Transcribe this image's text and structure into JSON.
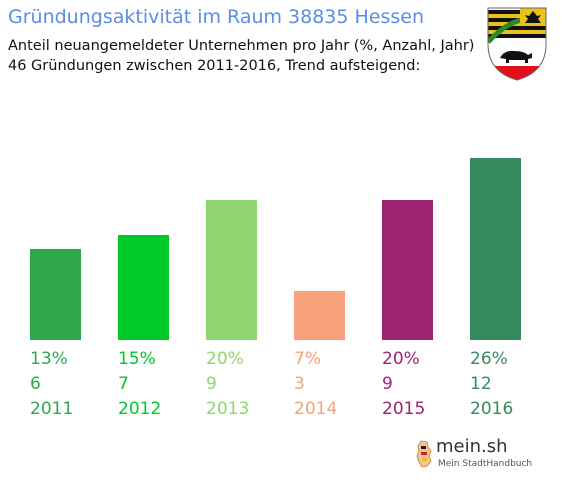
{
  "header": {
    "title": "Gründungsaktivität im Raum 38835 Hessen",
    "subtitle_line1": "Anteil neuangemeldeter Unternehmen pro Jahr (%, Anzahl, Jahr)",
    "subtitle_line2": "46 Gründungen zwischen 2011-2016, Trend aufsteigend:"
  },
  "crest": {
    "icon": "coat-of-arms-icon"
  },
  "logo": {
    "name": "mein.sh",
    "tagline": "Mein StadtHandbuch",
    "icon": "germany-map-icon"
  },
  "chart_data": {
    "type": "bar",
    "title": "Gründungsaktivität im Raum 38835 Hessen",
    "categories": [
      "2011",
      "2012",
      "2013",
      "2014",
      "2015",
      "2016"
    ],
    "values": [
      13,
      15,
      20,
      7,
      20,
      26
    ],
    "counts": [
      6,
      7,
      9,
      3,
      9,
      12
    ],
    "percent_labels": [
      "13%",
      "15%",
      "20%",
      "7%",
      "20%",
      "26%"
    ],
    "count_labels": [
      "6",
      "7",
      "9",
      "3",
      "9",
      "12"
    ],
    "colors": [
      "#2ea84b",
      "#00c92a",
      "#8fd670",
      "#f7a07a",
      "#9e2373",
      "#358a5e"
    ],
    "ylim": [
      0,
      26
    ],
    "grid": false,
    "legend": "none"
  }
}
